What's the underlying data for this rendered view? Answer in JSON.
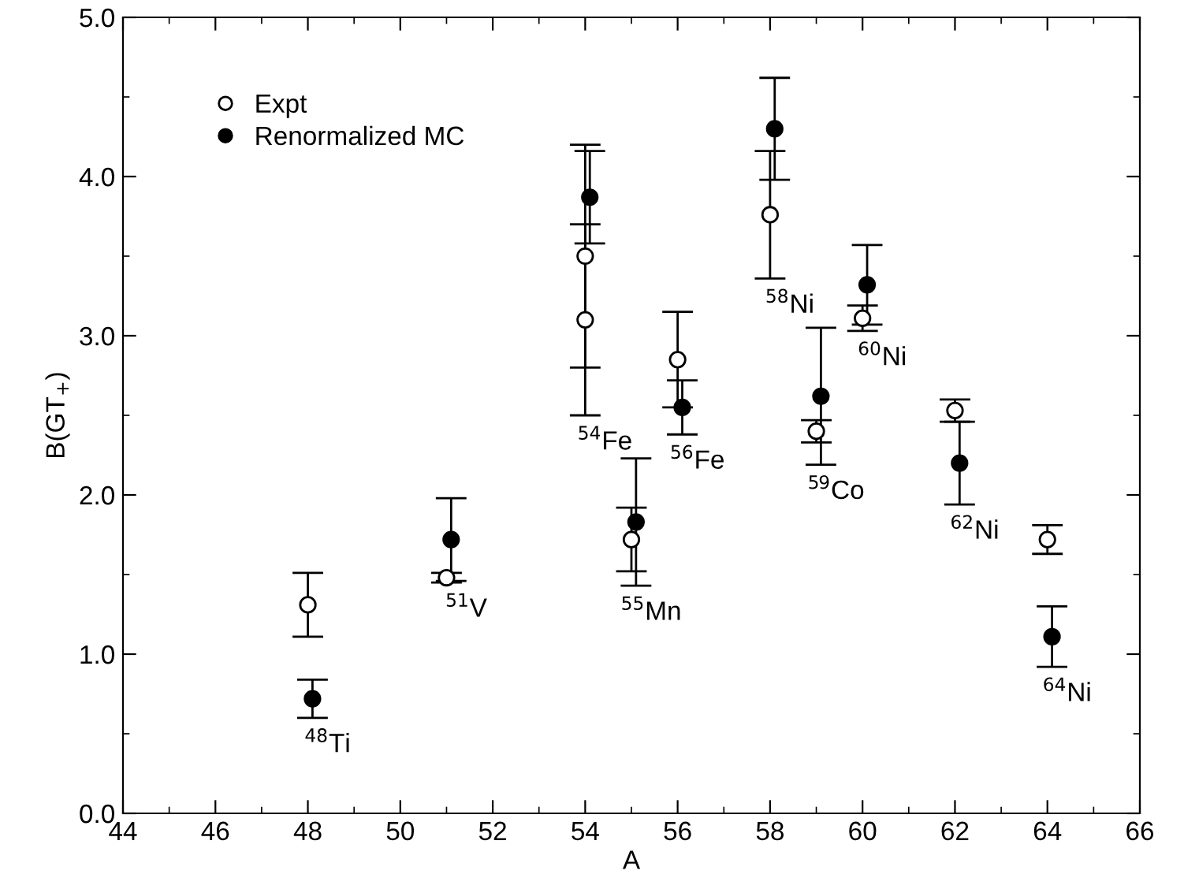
{
  "chart_data": {
    "type": "scatter",
    "xlabel": "A",
    "ylabel": "B(GT$_{+}$)",
    "xlim": [
      44,
      66
    ],
    "xticks": [
      44,
      46,
      48,
      50,
      52,
      54,
      56,
      58,
      60,
      62,
      64,
      66
    ],
    "ylim": [
      0,
      5
    ],
    "yticks": [
      {
        "value": 0,
        "label": "0.0"
      },
      {
        "value": 1,
        "label": "1.0"
      },
      {
        "value": 2,
        "label": "2.0"
      },
      {
        "value": 3,
        "label": "3.0"
      },
      {
        "value": 4,
        "label": "4.0"
      },
      {
        "value": 5,
        "label": "5.0"
      }
    ],
    "grid": false,
    "legend": "top left",
    "marker": "circle",
    "series": [
      {
        "name": "Expt",
        "color": "#ffffff",
        "x": [
          48,
          51,
          54,
          54,
          55,
          56,
          58,
          59,
          60,
          62,
          64
        ],
        "values": [
          1.31,
          1.48,
          3.5,
          3.1,
          1.72,
          2.85,
          3.76,
          2.4,
          3.11,
          2.53,
          1.72
        ],
        "errors": [
          0.2,
          0.03,
          0.7,
          0.6,
          0.2,
          0.3,
          0.4,
          0.07,
          0.08,
          0.07,
          0.09
        ]
      },
      {
        "name": "Renormalized MC",
        "color": "#000000",
        "x": [
          48.1,
          51.1,
          54.1,
          55.1,
          56.1,
          58.1,
          59.1,
          60.1,
          62.1,
          64.1
        ],
        "values": [
          0.72,
          1.72,
          3.87,
          1.83,
          2.55,
          4.3,
          2.62,
          3.32,
          2.2,
          1.11
        ],
        "errors": [
          0.12,
          0.26,
          0.29,
          0.4,
          0.17,
          0.32,
          0.43,
          0.25,
          0.26,
          0.19
        ]
      }
    ],
    "annotations": [
      "$^{48}$Ti",
      "$^{51}$V",
      "$^{54}$Fe",
      "$^{55}$Mn",
      "$^{56}$Fe",
      "$^{58}$Ni",
      "$^{59}$Co",
      "$^{60}$Ni",
      "$^{62}$Ni",
      "$^{64}$Ni"
    ]
  }
}
